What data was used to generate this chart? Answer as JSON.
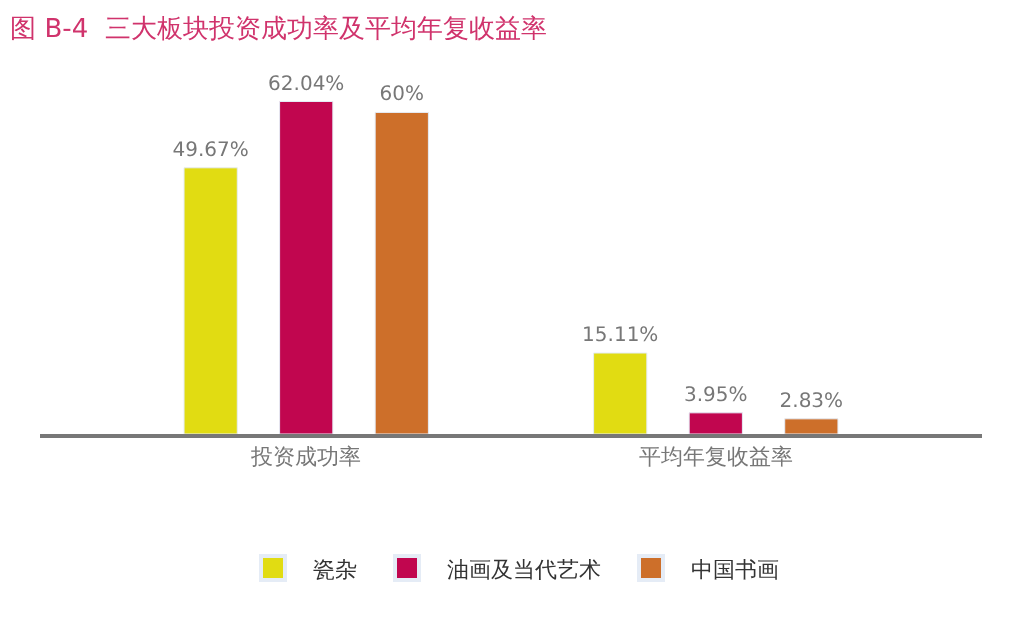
{
  "chart_data": {
    "type": "bar",
    "title": "图 B-4  三大板块投资成功率及平均年复收益率",
    "categories": [
      "投资成功率",
      "平均年复收益率"
    ],
    "series": [
      {
        "name": "瓷杂",
        "color": "#e1dc12",
        "values": [
          49.67,
          15.11
        ],
        "value_labels": [
          "49.67%",
          "15.11%"
        ]
      },
      {
        "name": "油画及当代艺术",
        "color": "#c1064f",
        "values": [
          62.04,
          3.95
        ],
        "value_labels": [
          "62.04%",
          "3.95%"
        ]
      },
      {
        "name": "中国书画",
        "color": "#cd6f2a",
        "values": [
          60,
          2.83
        ],
        "value_labels": [
          "60%",
          "2.83%"
        ]
      }
    ],
    "legend": "bottom",
    "tick_labels": "x"
  }
}
